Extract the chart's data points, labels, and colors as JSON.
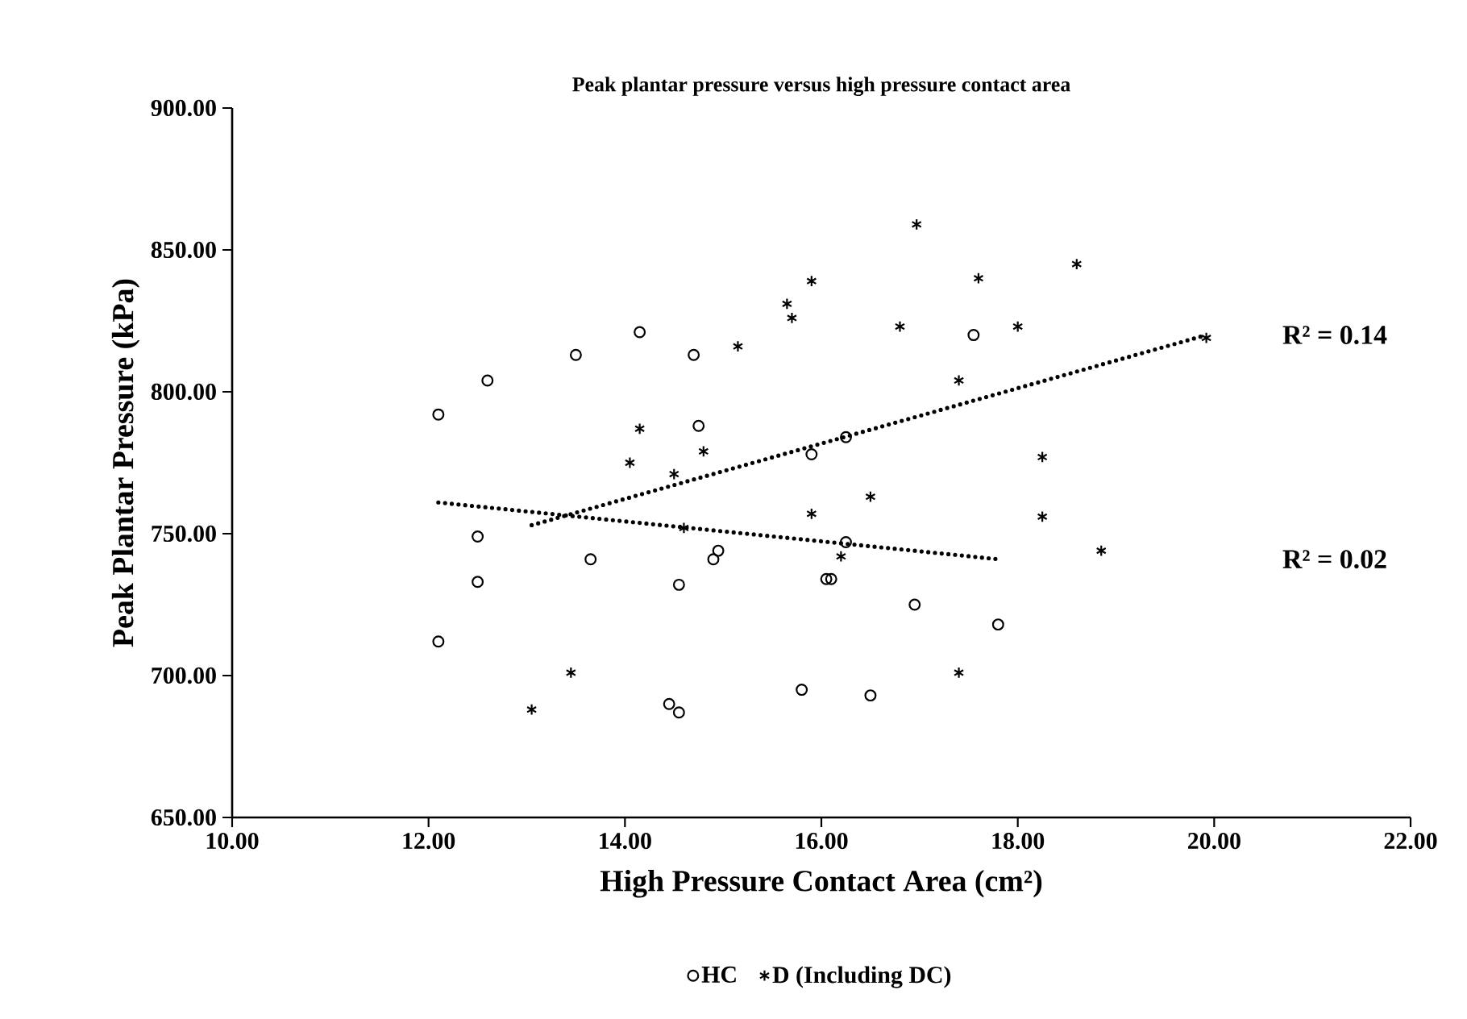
{
  "chart_data": {
    "type": "scatter",
    "title": "Peak plantar pressure versus high pressure contact area",
    "xlabel": "High Pressure Contact Area (cm²)",
    "ylabel": "Peak Plantar Pressure (kPa)",
    "xlim": [
      10,
      22
    ],
    "ylim": [
      650,
      900
    ],
    "xticks": [
      {
        "value": 10,
        "label": "10.00"
      },
      {
        "value": 12,
        "label": "12.00"
      },
      {
        "value": 14,
        "label": "14.00"
      },
      {
        "value": 16,
        "label": "16.00"
      },
      {
        "value": 18,
        "label": "18.00"
      },
      {
        "value": 20,
        "label": "20.00"
      },
      {
        "value": 22,
        "label": "22.00"
      }
    ],
    "yticks": [
      {
        "value": 650,
        "label": "650.00"
      },
      {
        "value": 700,
        "label": "700.00"
      },
      {
        "value": 750,
        "label": "750.00"
      },
      {
        "value": 800,
        "label": "800.00"
      },
      {
        "value": 850,
        "label": "850.00"
      },
      {
        "value": 900,
        "label": "900.00"
      }
    ],
    "grid": false,
    "legend": "bottom",
    "series": [
      {
        "name": "HC",
        "marker": "circle",
        "color": "#000000",
        "x": [
          12.1,
          12.1,
          12.5,
          12.5,
          12.6,
          13.5,
          13.65,
          14.15,
          14.45,
          14.55,
          14.55,
          14.7,
          14.75,
          14.9,
          14.95,
          15.8,
          15.9,
          16.05,
          16.1,
          16.25,
          16.25,
          16.5,
          16.95,
          17.55,
          17.8
        ],
        "values": [
          792,
          712,
          749,
          733,
          804,
          813,
          741,
          821,
          690,
          687,
          732,
          813,
          788,
          741,
          744,
          695,
          778,
          734,
          734,
          747,
          784,
          693,
          725,
          820,
          718
        ]
      },
      {
        "name": "D (Including DC)",
        "marker": "cross",
        "color": "#000000",
        "x": [
          13.05,
          13.45,
          14.05,
          14.15,
          14.5,
          14.6,
          14.8,
          15.15,
          15.65,
          15.7,
          15.9,
          15.9,
          16.2,
          16.5,
          16.8,
          16.97,
          17.4,
          17.4,
          17.6,
          18.0,
          18.25,
          18.25,
          18.6,
          18.85,
          19.92
        ],
        "values": [
          688,
          701,
          775,
          787,
          771,
          752,
          779,
          816,
          831,
          826,
          839,
          757,
          742,
          763,
          823,
          859,
          804,
          701,
          840,
          823,
          777,
          756,
          845,
          744,
          819
        ]
      },
      {
        "type": "line",
        "line_style": "dotted",
        "marker": "none",
        "color": "#000000",
        "x": [
          12.1,
          17.8
        ],
        "values": [
          761,
          741
        ]
      },
      {
        "type": "line",
        "line_style": "dotted",
        "marker": "none",
        "color": "#000000",
        "x": [
          13.05,
          19.92
        ],
        "values": [
          753,
          820
        ]
      }
    ],
    "annotations": [
      "R² = 0.14",
      "R² = 0.02"
    ]
  }
}
